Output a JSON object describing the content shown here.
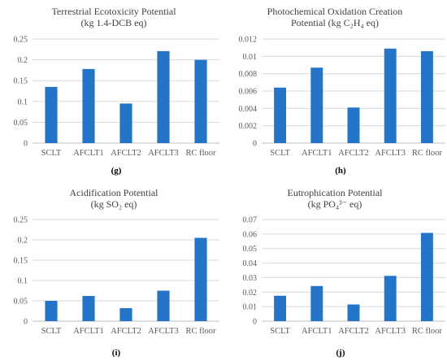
{
  "chart_data": [
    {
      "type": "bar",
      "panel": "(g)",
      "title": "Terrestrial Ecotoxicity Potential",
      "subtitle": "(kg 1.4-DCB eq)",
      "categories": [
        "SCLT",
        "AFCLT1",
        "AFCLT2",
        "AFCLT3",
        "RC floor"
      ],
      "values": [
        0.135,
        0.178,
        0.095,
        0.221,
        0.2
      ],
      "ylim": [
        0,
        0.25
      ],
      "yticks": [
        "0",
        "0.05",
        "0.1",
        "0.15",
        "0.2",
        "0.25"
      ],
      "grid": true,
      "color": "#2474c8"
    },
    {
      "type": "bar",
      "panel": "(h)",
      "title": "Photochemical Oxidation Creation",
      "subtitle": "Potential (kg C₂H₄ eq)",
      "categories": [
        "SCLT",
        "AFCLT1",
        "AFCLT2",
        "AFCLT3",
        "RC floor"
      ],
      "values": [
        0.0064,
        0.0087,
        0.0041,
        0.0109,
        0.0106
      ],
      "ylim": [
        0,
        0.012
      ],
      "yticks": [
        "0",
        "0.002",
        "0.004",
        "0.006",
        "0.008",
        "0.01",
        "0.012"
      ],
      "grid": true,
      "color": "#2474c8"
    },
    {
      "type": "bar",
      "panel": "(i)",
      "title": "Acidification Potential",
      "subtitle": "(kg SO₂ eq)",
      "categories": [
        "SCLT",
        "AFCLT1",
        "AFCLT2",
        "AFCLT3",
        "RC floor"
      ],
      "values": [
        0.05,
        0.062,
        0.032,
        0.075,
        0.205
      ],
      "ylim": [
        0,
        0.25
      ],
      "yticks": [
        "0",
        "0.05",
        "0.1",
        "0.15",
        "0.2",
        "0.25"
      ],
      "grid": true,
      "color": "#2474c8"
    },
    {
      "type": "bar",
      "panel": "(j)",
      "title": "Eutrophication Potential",
      "subtitle": "(kg PO₄³⁻ eq)",
      "categories": [
        "SCLT",
        "AFCLT1",
        "AFCLT2",
        "AFCLT3",
        "RC floor"
      ],
      "values": [
        0.0175,
        0.0242,
        0.0115,
        0.0312,
        0.0608
      ],
      "ylim": [
        0,
        0.07
      ],
      "yticks": [
        "0",
        "0.01",
        "0.02",
        "0.03",
        "0.04",
        "0.05",
        "0.06",
        "0.07"
      ],
      "grid": true,
      "color": "#2474c8"
    }
  ]
}
